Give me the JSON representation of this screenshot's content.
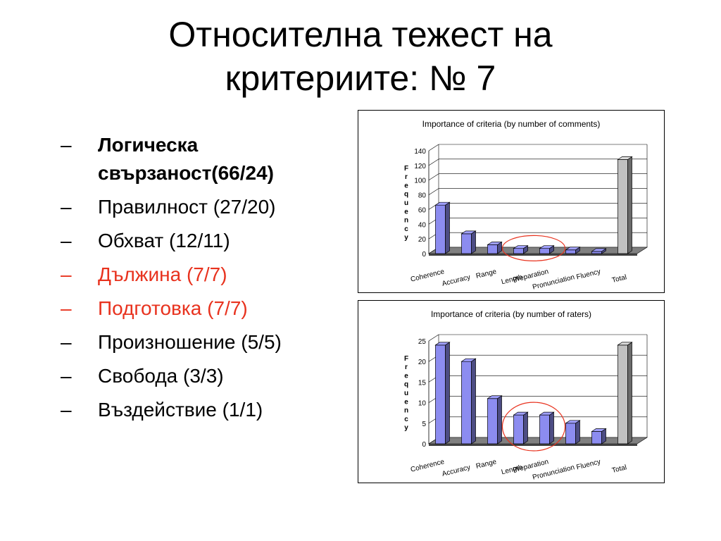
{
  "slide": {
    "title_line1": "Относителна тежест на",
    "title_line2": "критериите: № 7"
  },
  "bullets": [
    {
      "marker": "–",
      "text": "Логическа свързаност(66/24)",
      "bold": true,
      "color": "#000000"
    },
    {
      "marker": "–",
      "text": "Правилност (27/20)",
      "bold": false,
      "color": "#000000"
    },
    {
      "marker": "–",
      "text": "Обхват (12/11)",
      "bold": false,
      "color": "#000000"
    },
    {
      "marker": "–",
      "text": "Дължина (7/7)",
      "bold": false,
      "color": "#e8321e"
    },
    {
      "marker": "–",
      "text": "Подготовка (7/7)",
      "bold": false,
      "color": "#e8321e"
    },
    {
      "marker": "–",
      "text": "Произношение (5/5)",
      "bold": false,
      "color": "#000000"
    },
    {
      "marker": "–",
      "text": "Свобода (3/3)",
      "bold": false,
      "color": "#000000"
    },
    {
      "marker": "–",
      "text": "Въздействие (1/1)",
      "bold": false,
      "color": "#000000"
    }
  ],
  "chart_data": [
    {
      "type": "bar",
      "title": "Importance of criteria (by number of comments)",
      "ylabel": "Frequency",
      "xlabel": "",
      "categories": [
        "Coherence",
        "Accuracy",
        "Range",
        "Length",
        "Preparation",
        "Pronunciation",
        "Fluency",
        "Total"
      ],
      "values": [
        66,
        27,
        12,
        7,
        7,
        5,
        3,
        128
      ],
      "ylim": [
        0,
        140
      ],
      "yticks": [
        0,
        20,
        40,
        60,
        80,
        100,
        120,
        140
      ],
      "grid": true,
      "bar_color": "#8c8cf0",
      "total_bar_color": "#c0c0c0",
      "highlight_color": "#e8321e",
      "highlighted": [
        "Length",
        "Preparation"
      ]
    },
    {
      "type": "bar",
      "title": "Importance of criteria (by number of raters)",
      "ylabel": "Frequency",
      "xlabel": "",
      "categories": [
        "Coherence",
        "Accuracy",
        "Range",
        "Length",
        "Preparation",
        "Pronunciation",
        "Fluency",
        "Total"
      ],
      "values": [
        24,
        20,
        11,
        7,
        7,
        5,
        3,
        24
      ],
      "ylim": [
        0,
        25
      ],
      "yticks": [
        0,
        5,
        10,
        15,
        20,
        25
      ],
      "grid": true,
      "bar_color": "#8c8cf0",
      "total_bar_color": "#c0c0c0",
      "highlight_color": "#e8321e",
      "highlighted": [
        "Length",
        "Preparation"
      ]
    }
  ]
}
